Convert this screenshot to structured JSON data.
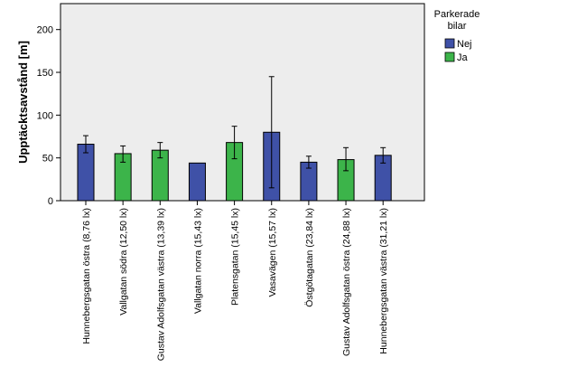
{
  "chart_data": {
    "type": "bar",
    "xlabel": "",
    "ylabel": "Upptäcktsavstånd [m]",
    "ylim": [
      0,
      230
    ],
    "yticks": [
      0,
      50,
      100,
      150,
      200
    ],
    "grid": false,
    "legend": {
      "title_lines": [
        "Parkerade",
        "bilar"
      ],
      "placement": "right-top",
      "entries": [
        {
          "label": "Nej",
          "color": "#3f51a7"
        },
        {
          "label": "Ja",
          "color": "#3cb44a"
        }
      ]
    },
    "categories": [
      "Hunnebergsgatan östra (8,76 lx)",
      "Vallgatan södra (12,50 lx)",
      "Gustav Adolfsgatan västra (13,39 lx)",
      "Vallgatan norra (15,43 lx)",
      "Platensgatan (15,45 lx)",
      "Vasavägen (15,57 lx)",
      "Östgötagatan (23,84 lx)",
      "Gustav Adolfsgatan östra (24,88 lx)",
      "Hunnebergsgatan västra (31,21 lx)"
    ],
    "bars": [
      {
        "category": 0,
        "group": "Nej",
        "value": 66,
        "err_low": 56,
        "err_high": 76
      },
      {
        "category": 1,
        "group": "Ja",
        "value": 55,
        "err_low": 45,
        "err_high": 64
      },
      {
        "category": 2,
        "group": "Ja",
        "value": 59,
        "err_low": 50,
        "err_high": 68
      },
      {
        "category": 3,
        "group": "Nej",
        "value": 44,
        "err_low": null,
        "err_high": null
      },
      {
        "category": 4,
        "group": "Ja",
        "value": 68,
        "err_low": 49,
        "err_high": 87
      },
      {
        "category": 5,
        "group": "Nej",
        "value": 80,
        "err_low": 15,
        "err_high": 145
      },
      {
        "category": 6,
        "group": "Nej",
        "value": 45,
        "err_low": 38,
        "err_high": 52
      },
      {
        "category": 7,
        "group": "Ja",
        "value": 48,
        "err_low": 35,
        "err_high": 62
      },
      {
        "category": 8,
        "group": "Nej",
        "value": 53,
        "err_low": 44,
        "err_high": 62
      }
    ]
  }
}
